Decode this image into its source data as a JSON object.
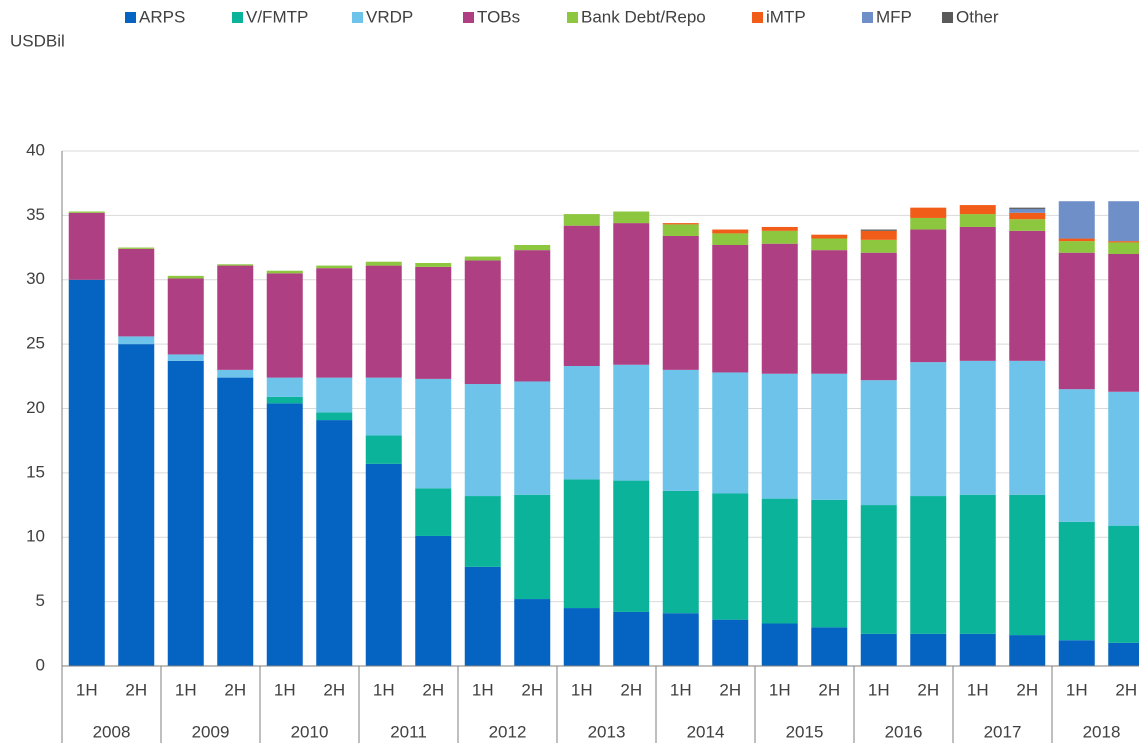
{
  "chart_data": {
    "type": "stacked_bar",
    "y_axis_label": "USDBil",
    "categories": [
      "1H",
      "2H",
      "1H",
      "2H",
      "1H",
      "2H",
      "1H",
      "2H",
      "1H",
      "2H",
      "1H",
      "2H",
      "1H",
      "2H",
      "1H",
      "2H",
      "1H",
      "2H",
      "1H",
      "2H",
      "1H",
      "2H"
    ],
    "years": [
      "2008",
      "2009",
      "2010",
      "2011",
      "2012",
      "2013",
      "2014",
      "2015",
      "2016",
      "2017",
      "2018"
    ],
    "ylim": [
      0,
      40
    ],
    "yticks": [
      0,
      5,
      10,
      15,
      20,
      25,
      30,
      35,
      40
    ],
    "grid": true,
    "series": [
      {
        "name": "ARPS",
        "color": "#0563c1",
        "values": [
          30.0,
          25.0,
          23.7,
          22.4,
          20.4,
          19.1,
          15.7,
          10.1,
          7.7,
          5.2,
          4.5,
          4.2,
          4.1,
          3.6,
          3.3,
          3.0,
          2.5,
          2.5,
          2.5,
          2.4,
          2.0,
          1.8
        ]
      },
      {
        "name": "V/FMTP",
        "color": "#0bb39a",
        "values": [
          0,
          0,
          0,
          0,
          0.5,
          0.6,
          2.2,
          3.7,
          5.5,
          8.1,
          10.0,
          10.2,
          9.5,
          9.8,
          9.7,
          9.9,
          10.0,
          10.7,
          10.8,
          10.9,
          9.2,
          9.1
        ]
      },
      {
        "name": "VRDP",
        "color": "#6dc3ea",
        "values": [
          0,
          0.6,
          0.5,
          0.6,
          1.5,
          2.7,
          4.5,
          8.5,
          8.7,
          8.8,
          8.8,
          9.0,
          9.4,
          9.4,
          9.7,
          9.8,
          9.7,
          10.4,
          10.4,
          10.4,
          10.3,
          10.4
        ]
      },
      {
        "name": "TOBs",
        "color": "#ae3f82",
        "values": [
          5.2,
          6.8,
          5.9,
          8.1,
          8.1,
          8.5,
          8.7,
          8.7,
          9.6,
          10.2,
          10.9,
          11.0,
          10.4,
          9.9,
          10.1,
          9.6,
          9.9,
          10.3,
          10.4,
          10.1,
          10.6,
          10.7
        ]
      },
      {
        "name": "Bank Debt/Repo",
        "color": "#8dc63f",
        "values": [
          0.1,
          0.1,
          0.2,
          0.1,
          0.2,
          0.2,
          0.3,
          0.3,
          0.3,
          0.4,
          0.9,
          0.9,
          0.9,
          0.9,
          1.0,
          0.9,
          1.0,
          0.9,
          1.0,
          0.9,
          0.9,
          0.9
        ]
      },
      {
        "name": "iMTP",
        "color": "#f25c19",
        "values": [
          0,
          0,
          0,
          0,
          0,
          0,
          0,
          0,
          0,
          0,
          0,
          0,
          0.1,
          0.3,
          0.3,
          0.3,
          0.7,
          0.8,
          0.7,
          0.5,
          0.2,
          0.1
        ]
      },
      {
        "name": "MFP",
        "color": "#6f8fc9",
        "values": [
          0,
          0,
          0,
          0,
          0,
          0,
          0,
          0,
          0,
          0,
          0,
          0,
          0,
          0,
          0,
          0,
          0,
          0,
          0,
          0.3,
          2.9,
          3.1
        ]
      },
      {
        "name": "Other",
        "color": "#5a5a5a",
        "values": [
          0,
          0,
          0,
          0,
          0,
          0,
          0,
          0,
          0,
          0,
          0,
          0,
          0,
          0,
          0,
          0,
          0.1,
          0,
          0,
          0.1,
          0,
          0
        ]
      }
    ]
  }
}
